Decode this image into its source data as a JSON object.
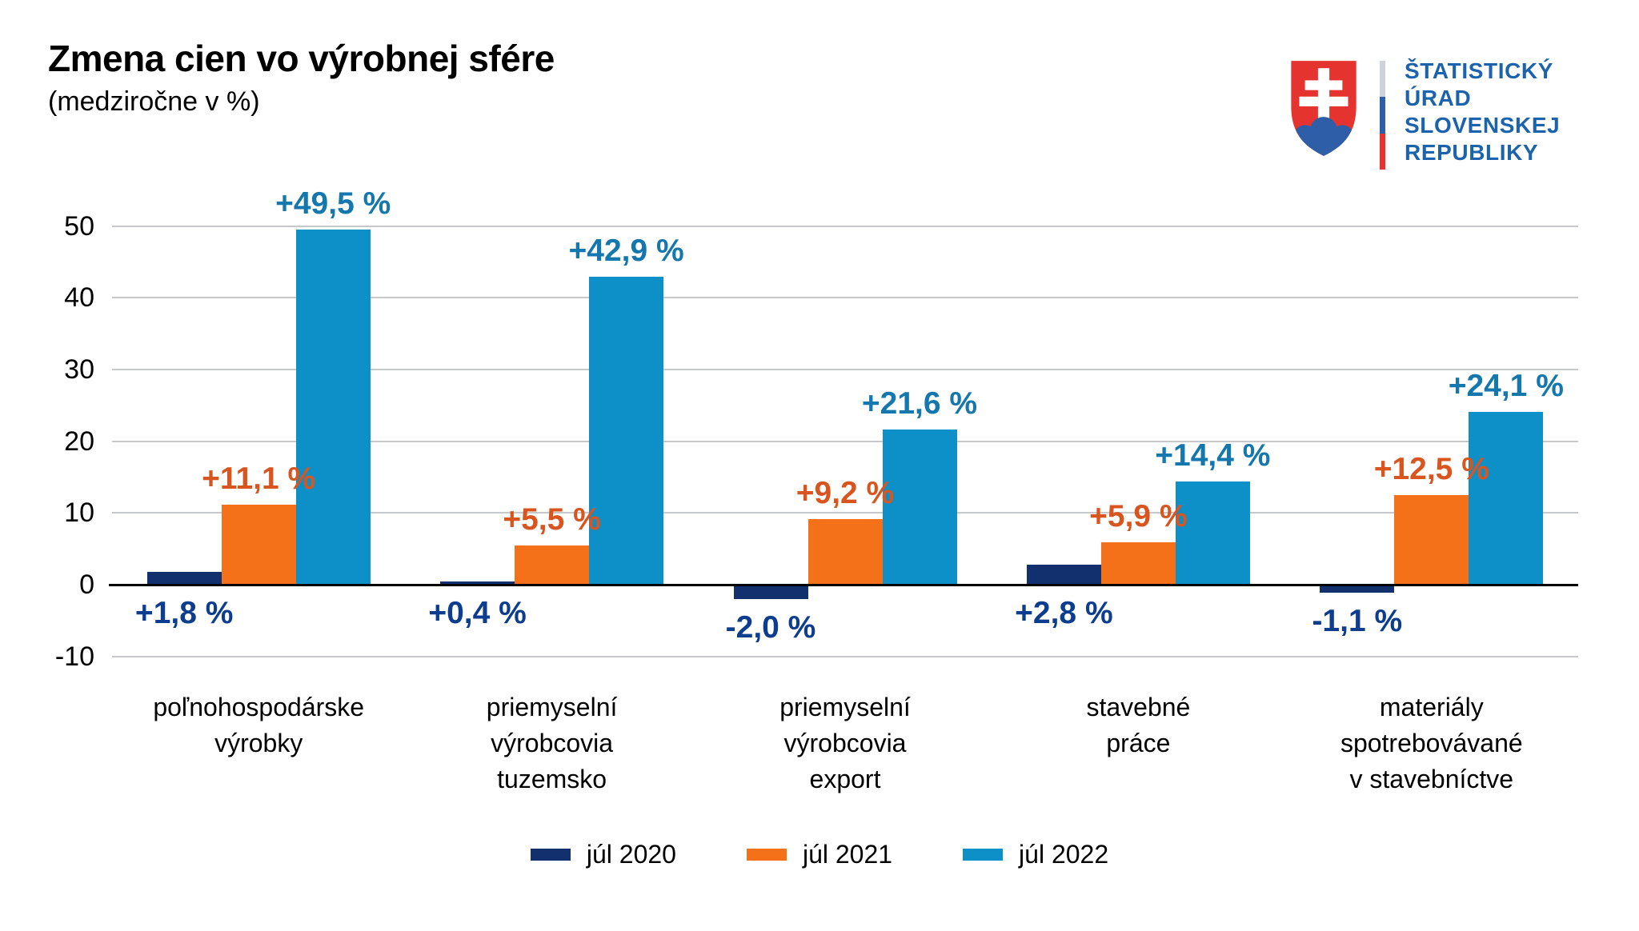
{
  "logo": {
    "lines": [
      "ŠTATISTICKÝ",
      "ÚRAD",
      "SLOVENSKEJ",
      "REPUBLIKY"
    ],
    "text_blue": "#1C63AD",
    "shield_red": "#E5332F",
    "shield_blue": "#2E5EA8",
    "divider_colors": [
      "#CDD3D8",
      "#2E5EA8",
      "#E5332F"
    ]
  },
  "chart_data": {
    "type": "bar",
    "title": "Zmena cien vo výrobnej sfére",
    "subtitle": "(medziročne v %)",
    "xlabel": "",
    "ylabel": "",
    "ylim": [
      -10,
      55
    ],
    "yticks": [
      50,
      40,
      30,
      20,
      10,
      0,
      -10
    ],
    "grid": true,
    "legend_position": "bottom",
    "axis_color": "#000000",
    "gridline_color": "#C6C8CC",
    "categories": [
      [
        "poľnohospodárske",
        "výrobky"
      ],
      [
        "priemyselní",
        "výrobcovia",
        "tuzemsko"
      ],
      [
        "priemyselní",
        "výrobcovia",
        "export"
      ],
      [
        "stavebné",
        "práce"
      ],
      [
        "materiály",
        "spotrebovávané",
        "v stavebníctve"
      ]
    ],
    "series": [
      {
        "name": "júl 2020",
        "color": "#12306E",
        "label_color": "#0C3D8F",
        "values": [
          1.8,
          0.4,
          -2.0,
          2.8,
          -1.1
        ],
        "labels": [
          "+1,8 %",
          "+0,4 %",
          "-2,0 %",
          "+2,8 %",
          "-1,1 %"
        ]
      },
      {
        "name": "júl 2021",
        "color": "#F47119",
        "label_color": "#D9551F",
        "values": [
          11.1,
          5.5,
          9.2,
          5.9,
          12.5
        ],
        "labels": [
          "+11,1 %",
          "+5,5 %",
          "+9,2 %",
          "+5,9 %",
          "+12,5 %"
        ]
      },
      {
        "name": "júl 2022",
        "color": "#0D90C8",
        "label_color": "#1477AE",
        "values": [
          49.5,
          42.9,
          21.6,
          14.4,
          24.1
        ],
        "labels": [
          "+49,5 %",
          "+42,9 %",
          "+21,6 %",
          "+14,4 %",
          "+24,1 %"
        ]
      }
    ]
  }
}
